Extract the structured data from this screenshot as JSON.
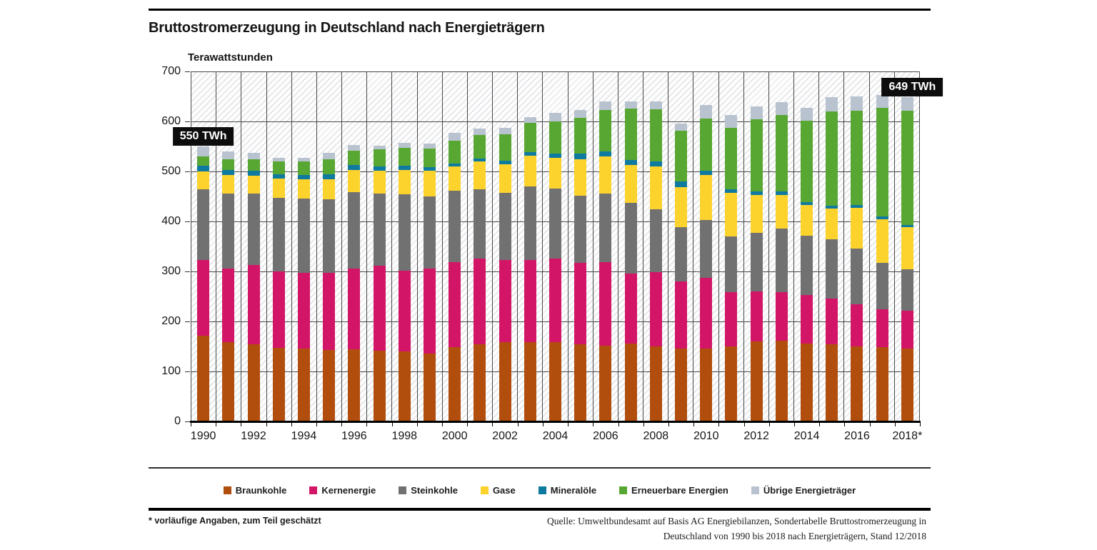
{
  "page": {
    "footnote": "* vorläufige Angaben, zum Teil geschätzt",
    "source_line1": "Quelle: Umweltbundesamt auf Basis AG Energiebilanzen, Sondertabelle Bruttostromerzeugung in",
    "source_line2": "Deutschland von 1990 bis 2018 nach Energieträgern, Stand 12/2018"
  },
  "chart_data": {
    "type": "bar",
    "stacked": true,
    "title": "Bruttostromerzeugung in Deutschland nach Energieträgern",
    "ylabel": "Terawattstunden",
    "xlabel": "",
    "ylim": [
      0,
      700
    ],
    "ytick_step": 100,
    "grid": "horizontal and vertical, dark thin lines on hatched background",
    "legend_position": "bottom",
    "categories": [
      "1990",
      "1991",
      "1992",
      "1993",
      "1994",
      "1995",
      "1996",
      "1997",
      "1998",
      "1999",
      "2000",
      "2001",
      "2002",
      "2003",
      "2004",
      "2005",
      "2006",
      "2007",
      "2008",
      "2009",
      "2010",
      "2011",
      "2012",
      "2013",
      "2014",
      "2015",
      "2016",
      "2017",
      "2018"
    ],
    "xtick_labels": [
      "1990",
      "1992",
      "1994",
      "1996",
      "1998",
      "2000",
      "2002",
      "2004",
      "2006",
      "2008",
      "2010",
      "2012",
      "2014",
      "2016",
      "2018*"
    ],
    "series": [
      {
        "name": "Braunkohle",
        "color": "#b14e0d",
        "values": [
          170.9,
          158.3,
          154.5,
          146.9,
          146.1,
          142.6,
          144.3,
          141.7,
          139.4,
          136.0,
          148.3,
          154.8,
          158.0,
          158.2,
          158.0,
          154.1,
          151.1,
          155.1,
          150.6,
          145.6,
          145.9,
          150.1,
          160.7,
          160.9,
          155.8,
          154.5,
          149.5,
          148.4,
          145.5
        ]
      },
      {
        "name": "Kernenergie",
        "color": "#d31567",
        "values": [
          152.5,
          147.4,
          158.8,
          153.5,
          151.2,
          154.1,
          161.6,
          170.3,
          161.6,
          170.0,
          169.6,
          171.3,
          164.8,
          165.1,
          167.1,
          163.0,
          167.4,
          140.5,
          148.5,
          134.9,
          140.6,
          108.0,
          99.5,
          97.3,
          97.1,
          91.8,
          84.6,
          76.3,
          76.0
        ]
      },
      {
        "name": "Steinkohle",
        "color": "#717171",
        "values": [
          140.8,
          149.8,
          141.9,
          147.1,
          147.8,
          147.1,
          152.7,
          143.1,
          153.4,
          143.5,
          143.1,
          138.4,
          134.6,
          146.5,
          141.1,
          134.1,
          137.9,
          142.0,
          124.6,
          107.9,
          117.0,
          112.4,
          116.4,
          127.3,
          118.6,
          117.7,
          112.2,
          92.9,
          83.2
        ]
      },
      {
        "name": "Gase",
        "color": "#fcd32d",
        "values": [
          35.9,
          37.1,
          36.5,
          38.1,
          38.6,
          41.2,
          44.5,
          47.0,
          49.1,
          51.4,
          49.2,
          55.5,
          56.3,
          61.4,
          61.5,
          72.7,
          73.4,
          75.9,
          86.7,
          80.9,
          89.3,
          86.1,
          76.4,
          67.5,
          61.1,
          62.0,
          81.3,
          86.7,
          83.4
        ]
      },
      {
        "name": "Mineralöle",
        "color": "#0f7aa0",
        "values": [
          10.8,
          10.9,
          9.8,
          9.1,
          8.9,
          9.0,
          9.3,
          8.6,
          8.6,
          7.9,
          5.9,
          6.1,
          7.4,
          8.1,
          8.3,
          11.6,
          10.7,
          9.7,
          9.2,
          10.1,
          8.7,
          7.2,
          7.6,
          7.2,
          5.7,
          6.2,
          5.8,
          5.9,
          5.2
        ]
      },
      {
        "name": "Erneuerbare Energien",
        "color": "#58a733",
        "values": [
          19.7,
          20.3,
          22.5,
          24.9,
          27.1,
          29.9,
          29.3,
          33.0,
          35.4,
          37.0,
          45.1,
          46.8,
          53.2,
          58.2,
          64.7,
          71.5,
          82.5,
          102.6,
          104.8,
          102.8,
          104.8,
          123.5,
          143.8,
          152.4,
          162.5,
          187.4,
          188.8,
          216.3,
          228.7
        ]
      },
      {
        "name": "Übrige Energieträger",
        "color": "#b9c3cf",
        "values": [
          19.3,
          16.4,
          13.8,
          8.3,
          7.9,
          12.9,
          11.4,
          8.5,
          9.2,
          10.5,
          15.4,
          13.5,
          12.4,
          11.3,
          16.8,
          15.6,
          16.6,
          14.8,
          16.3,
          13.4,
          26.8,
          25.8,
          25.7,
          26.1,
          27.0,
          28.5,
          28.5,
          27.1,
          27.1
        ]
      }
    ],
    "annotations": [
      {
        "label": "550 TWh",
        "category": "1990"
      },
      {
        "label": "649 TWh",
        "category": "2018"
      }
    ]
  }
}
